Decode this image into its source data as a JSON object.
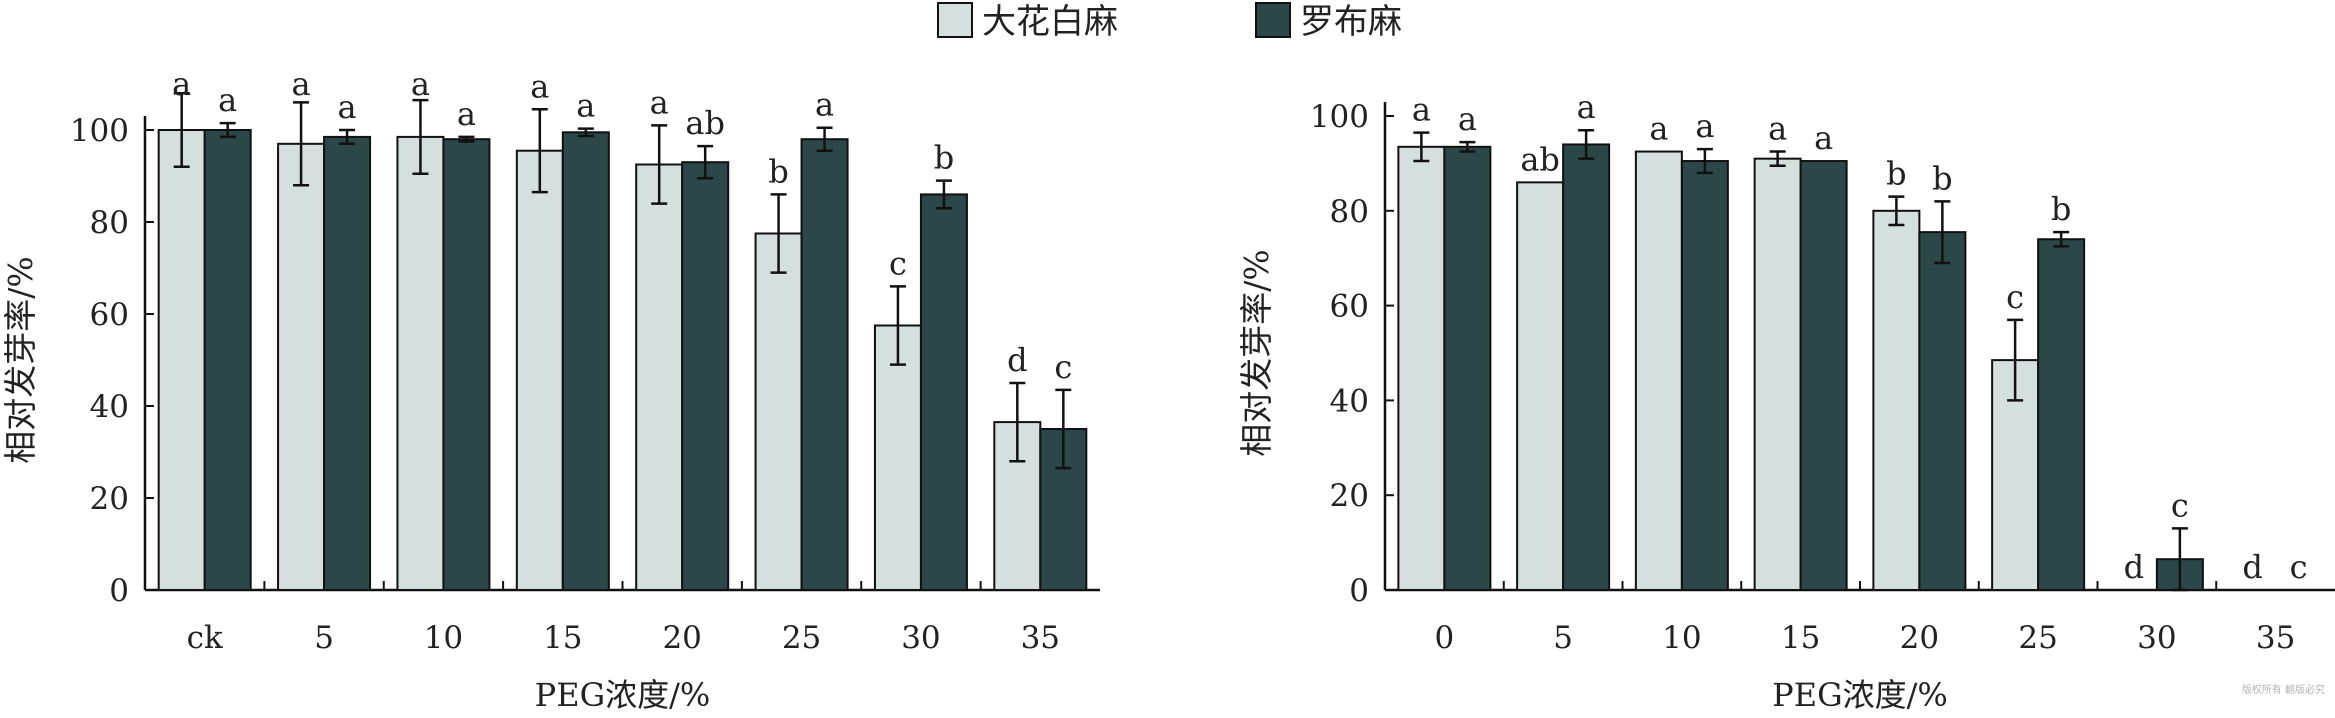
{
  "legend": {
    "items": [
      {
        "label": "大花白麻",
        "color": "#d5dfde"
      },
      {
        "label": "罗布麻",
        "color": "#2b4748"
      }
    ]
  },
  "watermark": "版权所有 翻版必究",
  "chart_data": [
    {
      "type": "bar",
      "xlabel": "PEG浓度/%",
      "ylabel": "相对发芽率/%",
      "ylim": [
        0,
        100
      ],
      "yticks": [
        0,
        20,
        40,
        60,
        80,
        100
      ],
      "categories": [
        "ck",
        "5",
        "10",
        "15",
        "20",
        "25",
        "30",
        "35"
      ],
      "series": [
        {
          "name": "大花白麻",
          "values": [
            100,
            97,
            98.5,
            95.5,
            92.5,
            77.5,
            57.5,
            36.5
          ],
          "errors": [
            8,
            9,
            8,
            9,
            8.5,
            8.5,
            8.5,
            8.5
          ],
          "labels": [
            "a",
            "a",
            "a",
            "a",
            "a",
            "b",
            "c",
            "d"
          ]
        },
        {
          "name": "罗布麻",
          "values": [
            100,
            98.5,
            98,
            99.5,
            93,
            98,
            86,
            35
          ],
          "errors": [
            1.5,
            1.5,
            0.5,
            0.8,
            3.5,
            2.5,
            3,
            8.5
          ],
          "labels": [
            "a",
            "a",
            "a",
            "a",
            "ab",
            "a",
            "b",
            "c"
          ]
        }
      ]
    },
    {
      "type": "bar",
      "xlabel": "PEG浓度/%",
      "ylabel": "相对发芽率/%",
      "ylim": [
        0,
        100
      ],
      "yticks": [
        0,
        20,
        40,
        60,
        80,
        100
      ],
      "categories": [
        "0",
        "5",
        "10",
        "15",
        "20",
        "25",
        "30",
        "35"
      ],
      "series": [
        {
          "name": "大花白麻",
          "values": [
            93.5,
            86,
            92.5,
            91,
            80,
            48.5,
            0,
            0
          ],
          "errors": [
            3,
            0,
            0,
            1.5,
            3,
            8.5,
            0,
            0
          ],
          "labels": [
            "a",
            "ab",
            "a",
            "a",
            "b",
            "c",
            "d",
            "d"
          ]
        },
        {
          "name": "罗布麻",
          "values": [
            93.5,
            94,
            90.5,
            90.5,
            75.5,
            74,
            6.5,
            0
          ],
          "errors": [
            1,
            3,
            2.5,
            0,
            6.5,
            1.5,
            6.5,
            0
          ],
          "labels": [
            "a",
            "a",
            "a",
            "a",
            "b",
            "b",
            "c",
            "c"
          ]
        }
      ]
    }
  ]
}
